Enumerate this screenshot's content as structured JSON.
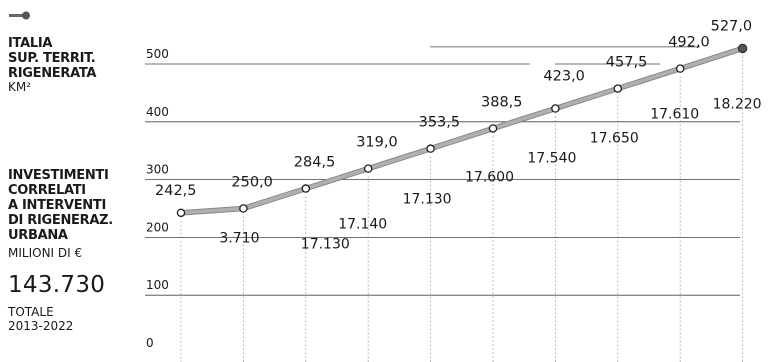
{
  "sidebar": {
    "icon": "key-icon",
    "title_lines": [
      "ITALIA",
      "SUP. TERRIT.",
      "RIGENERATA"
    ],
    "unit": "KM²",
    "invest_lines": [
      "INVESTIMENTI",
      "CORRELATI",
      "A INTERVENTI",
      "DI RIGENERAZ.",
      "URBANA"
    ],
    "invest_unit": "MILIONI DI €",
    "total_value": "143.730",
    "total_lines": [
      "TOTALE",
      "2013-2022"
    ]
  },
  "chart_data": {
    "type": "line",
    "ylim": [
      0,
      540
    ],
    "yticks": [
      "0",
      "100",
      "200",
      "300",
      "400",
      "500"
    ],
    "grid": true,
    "series": [
      {
        "values": [
          242.5,
          250.0,
          284.5,
          319.0,
          353.5,
          388.5,
          423.0,
          457.5,
          492.0,
          527.0
        ],
        "labels": [
          "242,5",
          "250,0",
          "284,5",
          "319,0",
          "353,5",
          "388,5",
          "423,0",
          "457,5",
          "492,0",
          "527,0"
        ]
      }
    ],
    "investments": [
      "3.710",
      "17.130",
      "17.140",
      "17.130",
      "17.600",
      "17.540",
      "17.650",
      "17.610",
      "18.220"
    ],
    "colors": {
      "line": "#b0b0b0",
      "text": "#1a1a1a",
      "grid": "#444444"
    }
  }
}
